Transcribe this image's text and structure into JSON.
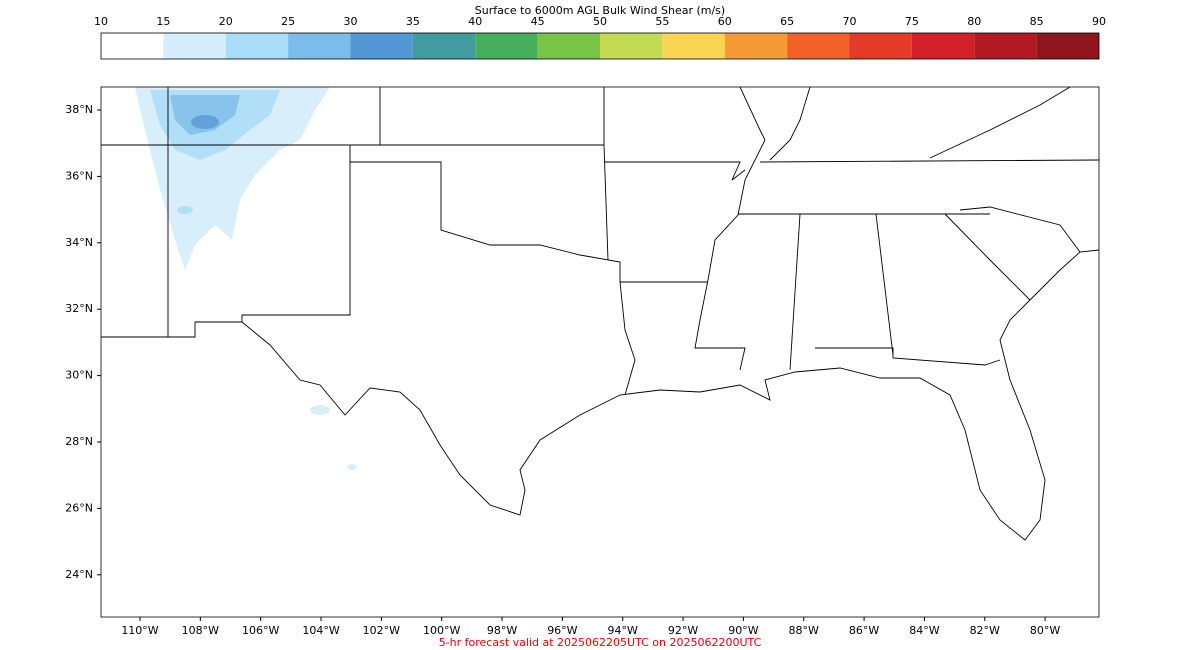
{
  "colorbar": {
    "title": "Surface to 6000m AGL Bulk Wind Shear (m/s)",
    "ticks": [
      10,
      15,
      20,
      25,
      30,
      35,
      40,
      45,
      50,
      55,
      60,
      65,
      70,
      75,
      80,
      85,
      90
    ],
    "colors": [
      "#ffffff",
      "#d4eefb",
      "#a8dcf7",
      "#7bbde8",
      "#5298d4",
      "#429b9e",
      "#46ae5c",
      "#79c447",
      "#c3db52",
      "#f9d552",
      "#f69a35",
      "#f26127",
      "#e33b28",
      "#d31f2a",
      "#b11a22",
      "#8f161c"
    ]
  },
  "map": {
    "lat_ticks": [
      {
        "value": 38,
        "label": "38°N"
      },
      {
        "value": 36,
        "label": "36°N"
      },
      {
        "value": 34,
        "label": "34°N"
      },
      {
        "value": 32,
        "label": "32°N"
      },
      {
        "value": 30,
        "label": "30°N"
      },
      {
        "value": 28,
        "label": "28°N"
      },
      {
        "value": 26,
        "label": "26°N"
      },
      {
        "value": 24,
        "label": "24°N"
      }
    ],
    "lon_ticks": [
      {
        "value": -110,
        "label": "110°W"
      },
      {
        "value": -108,
        "label": "108°W"
      },
      {
        "value": -106,
        "label": "106°W"
      },
      {
        "value": -104,
        "label": "104°W"
      },
      {
        "value": -102,
        "label": "102°W"
      },
      {
        "value": -100,
        "label": "100°W"
      },
      {
        "value": -98,
        "label": "98°W"
      },
      {
        "value": -96,
        "label": "96°W"
      },
      {
        "value": -94,
        "label": "94°W"
      },
      {
        "value": -92,
        "label": "92°W"
      },
      {
        "value": -90,
        "label": "90°W"
      },
      {
        "value": -88,
        "label": "88°W"
      },
      {
        "value": -86,
        "label": "86°W"
      },
      {
        "value": -84,
        "label": "84°W"
      },
      {
        "value": -82,
        "label": "82°W"
      },
      {
        "value": -80,
        "label": "80°W"
      }
    ]
  },
  "footer": "5-hr forecast valid at 2025062205UTC on 2025062200UTC"
}
